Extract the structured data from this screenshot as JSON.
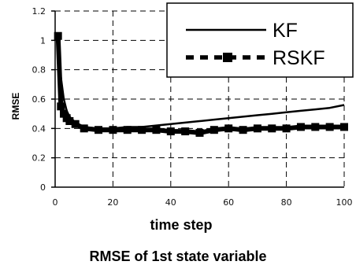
{
  "chart_data": {
    "type": "line",
    "title": "RMSE of 1st state variable",
    "xlabel": "time step",
    "ylabel": "RMSE",
    "xlim": [
      0,
      100
    ],
    "ylim": [
      0,
      1.2
    ],
    "x_ticks": [
      "0",
      "20",
      "40",
      "60",
      "80",
      "100"
    ],
    "y_ticks": [
      "0",
      "0.2",
      "0.4",
      "0.6",
      "0.8",
      "1",
      "1.2"
    ],
    "grid": "dashed",
    "legend_position": "top-right",
    "series": [
      {
        "name": "KF",
        "color": "#000000",
        "style": "solid",
        "x": [
          1,
          2,
          3,
          4,
          5,
          7,
          10,
          15,
          20,
          25,
          30,
          35,
          40,
          45,
          50,
          55,
          60,
          65,
          70,
          75,
          80,
          85,
          90,
          95,
          100
        ],
        "y": [
          1.03,
          0.75,
          0.6,
          0.52,
          0.48,
          0.44,
          0.41,
          0.4,
          0.4,
          0.41,
          0.41,
          0.42,
          0.43,
          0.44,
          0.45,
          0.46,
          0.47,
          0.48,
          0.49,
          0.5,
          0.51,
          0.52,
          0.53,
          0.54,
          0.56
        ]
      },
      {
        "name": "RSKF",
        "color": "#000000",
        "style": "dashed-square",
        "x": [
          1,
          2,
          3,
          4,
          5,
          7,
          10,
          15,
          20,
          25,
          30,
          35,
          40,
          45,
          50,
          55,
          60,
          65,
          70,
          75,
          80,
          85,
          90,
          95,
          100
        ],
        "y": [
          1.03,
          0.55,
          0.5,
          0.47,
          0.45,
          0.43,
          0.4,
          0.39,
          0.39,
          0.39,
          0.39,
          0.39,
          0.38,
          0.38,
          0.37,
          0.39,
          0.4,
          0.39,
          0.4,
          0.4,
          0.4,
          0.41,
          0.41,
          0.41,
          0.41
        ]
      }
    ]
  }
}
